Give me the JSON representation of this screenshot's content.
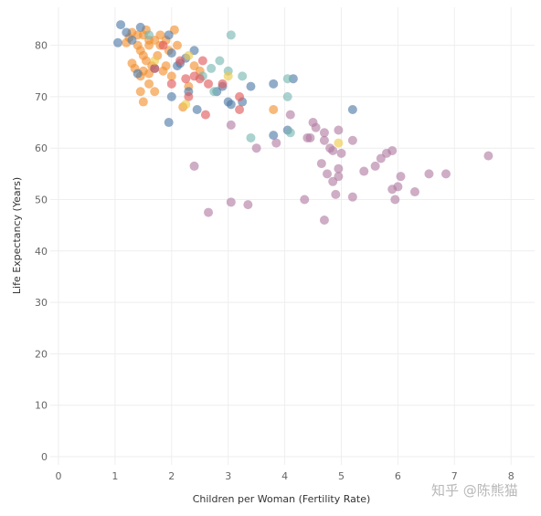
{
  "chart_data": {
    "type": "scatter",
    "title": "",
    "xlabel": "Children per Woman (Fertility Rate)",
    "ylabel": "Life Expectancy (Years)",
    "xlim": [
      0,
      8
    ],
    "ylim": [
      0,
      85
    ],
    "xticks": [
      0,
      1,
      2,
      3,
      4,
      5,
      6,
      7,
      8
    ],
    "yticks": [
      0,
      10,
      20,
      30,
      40,
      50,
      60,
      70,
      80
    ],
    "grid": true,
    "legend": "none",
    "series": [
      {
        "color": "#f28e2b",
        "points": [
          [
            1.2,
            80.5
          ],
          [
            1.25,
            81.5
          ],
          [
            1.3,
            82.5
          ],
          [
            1.3,
            76.5
          ],
          [
            1.35,
            75.5
          ],
          [
            1.4,
            80
          ],
          [
            1.4,
            82
          ],
          [
            1.45,
            79
          ],
          [
            1.45,
            74
          ],
          [
            1.5,
            82
          ],
          [
            1.5,
            78
          ],
          [
            1.5,
            69
          ],
          [
            1.5,
            75
          ],
          [
            1.55,
            83
          ],
          [
            1.55,
            77
          ],
          [
            1.6,
            80
          ],
          [
            1.6,
            81
          ],
          [
            1.6,
            74.5
          ],
          [
            1.6,
            72.5
          ],
          [
            1.65,
            76
          ],
          [
            1.7,
            81
          ],
          [
            1.7,
            71
          ],
          [
            1.75,
            78
          ],
          [
            1.8,
            80
          ],
          [
            1.8,
            82
          ],
          [
            1.85,
            75
          ],
          [
            1.9,
            81
          ],
          [
            1.9,
            76
          ],
          [
            1.95,
            79
          ],
          [
            2.0,
            74
          ],
          [
            2.05,
            83
          ],
          [
            2.1,
            80
          ],
          [
            2.2,
            68
          ],
          [
            2.3,
            72
          ],
          [
            2.4,
            76
          ],
          [
            2.5,
            75
          ],
          [
            3.8,
            67.5
          ],
          [
            1.45,
            71
          ]
        ]
      },
      {
        "color": "#4e79a7",
        "points": [
          [
            1.05,
            80.5
          ],
          [
            1.1,
            84
          ],
          [
            1.2,
            82.5
          ],
          [
            1.3,
            81
          ],
          [
            1.4,
            74.5
          ],
          [
            1.45,
            83.5
          ],
          [
            1.7,
            75.5
          ],
          [
            1.95,
            82
          ],
          [
            2.0,
            78.5
          ],
          [
            2.1,
            76
          ],
          [
            2.25,
            77.5
          ],
          [
            2.4,
            79
          ],
          [
            2.45,
            67.5
          ],
          [
            1.95,
            65
          ],
          [
            2.0,
            70
          ],
          [
            2.3,
            71
          ],
          [
            2.8,
            71
          ],
          [
            2.9,
            72
          ],
          [
            3.0,
            69
          ],
          [
            3.05,
            68.5
          ],
          [
            3.25,
            69
          ],
          [
            3.4,
            72
          ],
          [
            3.8,
            72.5
          ],
          [
            3.8,
            62.5
          ],
          [
            4.15,
            73.5
          ],
          [
            4.05,
            63.5
          ],
          [
            5.2,
            67.5
          ],
          [
            2.15,
            76.5
          ]
        ]
      },
      {
        "color": "#76b7b2",
        "points": [
          [
            1.6,
            82
          ],
          [
            2.55,
            74
          ],
          [
            2.7,
            75.5
          ],
          [
            2.85,
            77
          ],
          [
            3.0,
            75
          ],
          [
            3.05,
            82
          ],
          [
            3.25,
            74
          ],
          [
            3.4,
            62
          ],
          [
            4.05,
            73.5
          ],
          [
            4.05,
            70
          ],
          [
            4.1,
            63
          ],
          [
            2.75,
            71
          ]
        ]
      },
      {
        "color": "#e15759",
        "points": [
          [
            1.85,
            80
          ],
          [
            2.0,
            72.5
          ],
          [
            2.15,
            77
          ],
          [
            2.25,
            73.5
          ],
          [
            2.3,
            70
          ],
          [
            2.4,
            74
          ],
          [
            2.5,
            73.5
          ],
          [
            2.55,
            77
          ],
          [
            2.6,
            66.5
          ],
          [
            2.65,
            72.5
          ],
          [
            2.9,
            72.5
          ],
          [
            3.2,
            67.5
          ],
          [
            3.2,
            70
          ],
          [
            1.7,
            75.5
          ]
        ]
      },
      {
        "color": "#edc948",
        "points": [
          [
            1.7,
            77
          ],
          [
            2.25,
            68.5
          ],
          [
            2.3,
            78
          ],
          [
            3.0,
            74
          ],
          [
            4.95,
            61
          ]
        ]
      },
      {
        "color": "#b07aa1",
        "points": [
          [
            2.4,
            56.5
          ],
          [
            2.65,
            47.5
          ],
          [
            3.05,
            49.5
          ],
          [
            3.05,
            64.5
          ],
          [
            3.35,
            49
          ],
          [
            3.5,
            60
          ],
          [
            3.85,
            61
          ],
          [
            4.1,
            66.5
          ],
          [
            4.35,
            50
          ],
          [
            4.4,
            62
          ],
          [
            4.45,
            62
          ],
          [
            4.5,
            65
          ],
          [
            4.55,
            64
          ],
          [
            4.65,
            57
          ],
          [
            4.7,
            61.5
          ],
          [
            4.7,
            63
          ],
          [
            4.7,
            46
          ],
          [
            4.75,
            55
          ],
          [
            4.8,
            60
          ],
          [
            4.85,
            59.5
          ],
          [
            4.85,
            53.5
          ],
          [
            4.9,
            51
          ],
          [
            4.95,
            63.5
          ],
          [
            4.95,
            56
          ],
          [
            4.95,
            54.5
          ],
          [
            5.0,
            59
          ],
          [
            5.2,
            61.5
          ],
          [
            5.2,
            50.5
          ],
          [
            5.4,
            55.5
          ],
          [
            5.6,
            56.5
          ],
          [
            5.7,
            58
          ],
          [
            5.8,
            59
          ],
          [
            5.9,
            59.5
          ],
          [
            5.9,
            52
          ],
          [
            5.95,
            50
          ],
          [
            6.0,
            52.5
          ],
          [
            6.05,
            54.5
          ],
          [
            6.3,
            51.5
          ],
          [
            6.55,
            55
          ],
          [
            6.85,
            55
          ],
          [
            7.6,
            58.5
          ]
        ]
      }
    ]
  },
  "watermark": "知乎 @陈熊猫"
}
